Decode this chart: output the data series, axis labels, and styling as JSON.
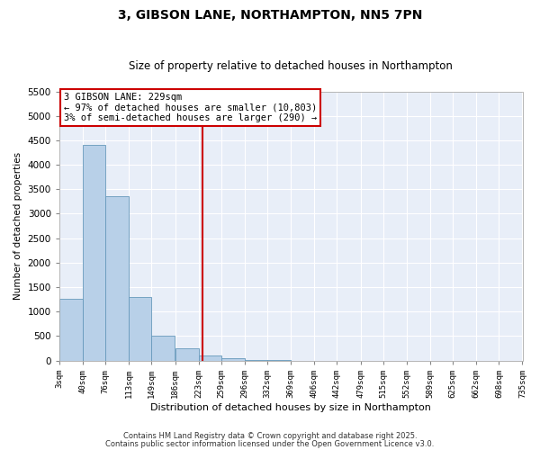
{
  "title": "3, GIBSON LANE, NORTHAMPTON, NN5 7PN",
  "subtitle": "Size of property relative to detached houses in Northampton",
  "xlabel": "Distribution of detached houses by size in Northampton",
  "ylabel": "Number of detached properties",
  "bar_color": "#b8d0e8",
  "bar_edge_color": "#6699bb",
  "background_color": "#e8eef8",
  "fig_background": "#ffffff",
  "grid_color": "#ffffff",
  "annotation_box_text": "3 GIBSON LANE: 229sqm\n← 97% of detached houses are smaller (10,803)\n3% of semi-detached houses are larger (290) →",
  "vline_x": 229,
  "vline_color": "#cc0000",
  "ylim": [
    0,
    5500
  ],
  "bin_edges": [
    3,
    40,
    76,
    113,
    149,
    186,
    223,
    259,
    296,
    332,
    369,
    406,
    442,
    479,
    515,
    552,
    589,
    625,
    662,
    698,
    735
  ],
  "bar_heights": [
    1265,
    4400,
    3350,
    1290,
    510,
    250,
    100,
    50,
    15,
    5,
    3,
    2,
    1,
    1,
    0,
    0,
    0,
    0,
    0,
    0
  ],
  "footnote1": "Contains HM Land Registry data © Crown copyright and database right 2025.",
  "footnote2": "Contains public sector information licensed under the Open Government Licence v3.0.",
  "yticks": [
    0,
    500,
    1000,
    1500,
    2000,
    2500,
    3000,
    3500,
    4000,
    4500,
    5000,
    5500
  ]
}
